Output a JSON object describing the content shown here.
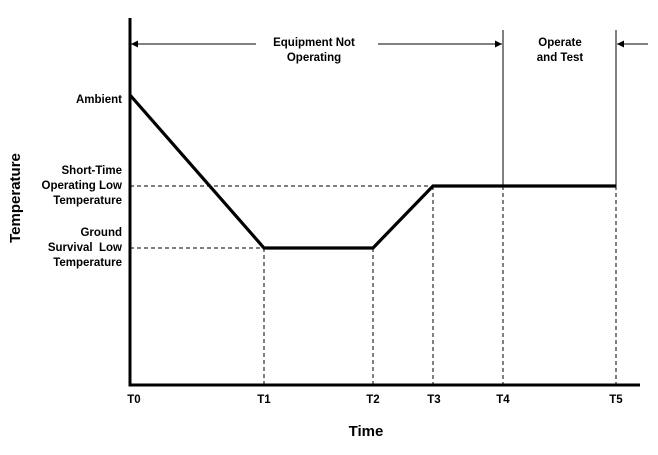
{
  "chart_data": {
    "type": "line",
    "xlabel": "Time",
    "ylabel": "Temperature",
    "x_ticks": [
      "T0",
      "T1",
      "T2",
      "T3",
      "T4",
      "T5"
    ],
    "temperature_levels": {
      "ambient": "Ambient",
      "short_time_operating_low": [
        "Short-Time",
        "Operating Low",
        "Temperature"
      ],
      "ground_survival_low": [
        "Ground",
        "Survival  Low",
        "Temperature"
      ]
    },
    "profile": [
      {
        "time": "T0",
        "level": "Ambient"
      },
      {
        "time": "T1",
        "level": "Ground Survival Low Temperature"
      },
      {
        "time": "T2",
        "level": "Ground Survival Low Temperature"
      },
      {
        "time": "T3",
        "level": "Short-Time Operating Low Temperature"
      },
      {
        "time": "T4",
        "level": "Short-Time Operating Low Temperature"
      },
      {
        "time": "T5",
        "level": "Short-Time Operating Low Temperature"
      }
    ],
    "phases": [
      {
        "label": [
          "Equipment Not",
          "Operating"
        ],
        "from": "T0",
        "to": "T4"
      },
      {
        "label": [
          "Operate",
          "and Test"
        ],
        "from": "T4",
        "to": "T5"
      }
    ]
  }
}
